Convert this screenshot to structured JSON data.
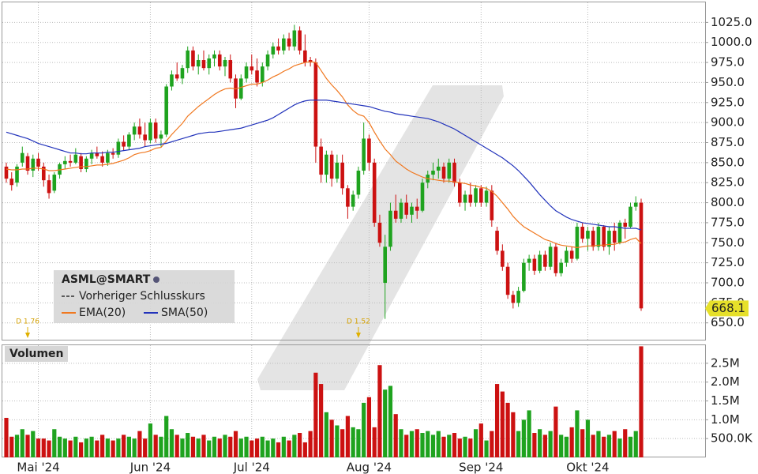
{
  "chart_data": {
    "type": "candlestick",
    "symbol": "ASML@SMART",
    "previous_close_label": "Vorheriger Schlusskurs",
    "volume_title": "Volumen",
    "up_color": "#1fa31f",
    "down_color": "#cc1111",
    "grid": true,
    "categories": [
      null,
      null,
      null,
      null,
      null,
      null,
      "Mai '24",
      null,
      null,
      null,
      null,
      null,
      null,
      null,
      null,
      null,
      null,
      null,
      null,
      null,
      null,
      null,
      null,
      null,
      null,
      null,
      null,
      "Jun '24",
      null,
      null,
      null,
      null,
      null,
      null,
      null,
      null,
      null,
      null,
      null,
      null,
      null,
      null,
      null,
      null,
      null,
      null,
      "Jul '24",
      null,
      null,
      null,
      null,
      null,
      null,
      null,
      null,
      null,
      null,
      null,
      null,
      null,
      null,
      null,
      null,
      null,
      null,
      null,
      null,
      null,
      "Aug '24",
      null,
      null,
      null,
      null,
      null,
      null,
      null,
      null,
      null,
      null,
      null,
      null,
      null,
      null,
      null,
      null,
      null,
      null,
      null,
      null,
      "Sep '24",
      null,
      null,
      null,
      null,
      null,
      null,
      null,
      null,
      null,
      null,
      null,
      null,
      null,
      null,
      null,
      null,
      null,
      null,
      null,
      "Okt '24",
      null,
      null,
      null,
      null,
      null,
      null,
      null,
      null,
      null,
      null
    ],
    "open": [
      845,
      830,
      825,
      850,
      858,
      840,
      855,
      845,
      828,
      815,
      835,
      848,
      852,
      850,
      858,
      842,
      855,
      862,
      858,
      850,
      862,
      860,
      876,
      870,
      885,
      895,
      885,
      878,
      900,
      880,
      885,
      945,
      960,
      955,
      968,
      990,
      970,
      978,
      968,
      980,
      985,
      970,
      978,
      955,
      930,
      955,
      970,
      965,
      950,
      970,
      985,
      995,
      990,
      1005,
      995,
      1015,
      990,
      978,
      975,
      870,
      835,
      860,
      830,
      850,
      818,
      795,
      810,
      840,
      880,
      850,
      775,
      700,
      745,
      790,
      780,
      800,
      785,
      795,
      790,
      825,
      835,
      840,
      845,
      830,
      850,
      825,
      800,
      810,
      800,
      818,
      800,
      815,
      765,
      740,
      720,
      685,
      675,
      690,
      725,
      730,
      715,
      735,
      720,
      745,
      712,
      725,
      740,
      730,
      770,
      755,
      765,
      745,
      770,
      745,
      765,
      750,
      775,
      770,
      795,
      800
    ],
    "high": [
      850,
      838,
      848,
      870,
      862,
      860,
      862,
      850,
      835,
      838,
      850,
      858,
      860,
      868,
      862,
      858,
      866,
      870,
      864,
      866,
      868,
      880,
      884,
      888,
      900,
      905,
      900,
      905,
      905,
      890,
      948,
      965,
      975,
      972,
      995,
      995,
      985,
      990,
      985,
      990,
      990,
      982,
      985,
      960,
      960,
      975,
      985,
      980,
      975,
      990,
      1000,
      1005,
      1010,
      1012,
      1022,
      1020,
      1010,
      982,
      980,
      880,
      865,
      865,
      860,
      860,
      822,
      815,
      845,
      900,
      885,
      855,
      785,
      760,
      800,
      810,
      805,
      810,
      800,
      805,
      830,
      840,
      850,
      855,
      850,
      855,
      855,
      830,
      815,
      825,
      822,
      822,
      820,
      822,
      770,
      748,
      725,
      690,
      695,
      730,
      735,
      735,
      740,
      740,
      750,
      750,
      730,
      745,
      745,
      775,
      775,
      770,
      770,
      775,
      772,
      770,
      775,
      778,
      780,
      800,
      808,
      805
    ],
    "low": [
      825,
      815,
      820,
      845,
      835,
      832,
      840,
      820,
      805,
      812,
      830,
      842,
      845,
      848,
      838,
      838,
      848,
      855,
      845,
      846,
      855,
      856,
      865,
      866,
      878,
      880,
      870,
      874,
      875,
      870,
      882,
      940,
      952,
      948,
      962,
      965,
      960,
      965,
      960,
      970,
      965,
      958,
      950,
      918,
      928,
      950,
      960,
      945,
      945,
      965,
      980,
      985,
      985,
      990,
      990,
      985,
      970,
      970,
      850,
      825,
      825,
      820,
      825,
      810,
      780,
      790,
      805,
      835,
      840,
      770,
      745,
      655,
      740,
      775,
      775,
      780,
      775,
      780,
      788,
      818,
      828,
      830,
      825,
      825,
      820,
      795,
      790,
      795,
      795,
      795,
      795,
      770,
      735,
      715,
      680,
      668,
      670,
      688,
      715,
      710,
      712,
      715,
      716,
      708,
      708,
      720,
      725,
      728,
      750,
      740,
      740,
      740,
      740,
      735,
      740,
      748,
      755,
      768,
      790,
      665
    ],
    "close": [
      830,
      822,
      845,
      862,
      840,
      855,
      845,
      828,
      812,
      835,
      848,
      852,
      850,
      860,
      842,
      855,
      862,
      858,
      850,
      862,
      860,
      876,
      870,
      885,
      895,
      885,
      878,
      900,
      880,
      885,
      945,
      960,
      955,
      968,
      990,
      970,
      978,
      968,
      980,
      985,
      970,
      978,
      955,
      930,
      955,
      970,
      965,
      950,
      970,
      985,
      995,
      990,
      1005,
      995,
      1015,
      990,
      975,
      975,
      870,
      835,
      860,
      830,
      850,
      818,
      795,
      810,
      840,
      880,
      850,
      775,
      750,
      745,
      790,
      780,
      800,
      785,
      795,
      790,
      825,
      835,
      840,
      845,
      830,
      850,
      825,
      800,
      810,
      800,
      818,
      800,
      815,
      778,
      740,
      720,
      685,
      675,
      690,
      725,
      730,
      715,
      735,
      720,
      745,
      712,
      725,
      740,
      730,
      770,
      755,
      765,
      745,
      770,
      745,
      765,
      750,
      775,
      770,
      795,
      800,
      668.1
    ],
    "volume": [
      1050000,
      550000,
      600000,
      750000,
      600000,
      700000,
      500000,
      500000,
      450000,
      750000,
      550000,
      500000,
      450000,
      550000,
      400000,
      500000,
      550000,
      450000,
      600000,
      500000,
      450000,
      500000,
      600000,
      550000,
      500000,
      700000,
      500000,
      900000,
      600000,
      550000,
      1100000,
      750000,
      600000,
      500000,
      650000,
      550000,
      500000,
      600000,
      450000,
      550000,
      500000,
      600000,
      550000,
      700000,
      500000,
      550000,
      450000,
      500000,
      550000,
      450000,
      500000,
      400000,
      550000,
      450000,
      600000,
      650000,
      400000,
      700000,
      2250000,
      1950000,
      1200000,
      1000000,
      850000,
      750000,
      1100000,
      800000,
      750000,
      1450000,
      1600000,
      800000,
      2450000,
      1800000,
      1900000,
      1150000,
      750000,
      600000,
      700000,
      750000,
      650000,
      700000,
      600000,
      700000,
      550000,
      600000,
      650000,
      500000,
      550000,
      500000,
      750000,
      900000,
      450000,
      700000,
      1950000,
      1750000,
      1450000,
      1200000,
      700000,
      1000000,
      1250000,
      650000,
      750000,
      600000,
      700000,
      1350000,
      600000,
      550000,
      800000,
      1250000,
      750000,
      1000000,
      600000,
      700000,
      550000,
      600000,
      700000,
      500000,
      750000,
      550000,
      700000,
      2950000
    ],
    "series": [
      {
        "name": "EMA(20)",
        "color": "#f07820",
        "values": [
          842,
          841,
          841,
          842,
          842,
          843,
          843,
          842,
          840,
          840,
          841,
          842,
          843,
          844,
          845,
          845,
          846,
          847,
          847,
          848,
          849,
          851,
          853,
          856,
          860,
          862,
          863,
          865,
          868,
          869,
          877,
          885,
          892,
          899,
          908,
          914,
          920,
          925,
          930,
          935,
          939,
          942,
          943,
          942,
          944,
          946,
          948,
          948,
          950,
          953,
          957,
          960,
          964,
          967,
          971,
          973,
          975,
          976,
          975,
          965,
          955,
          947,
          940,
          932,
          922,
          915,
          910,
          908,
          900,
          888,
          877,
          867,
          860,
          852,
          847,
          842,
          838,
          835,
          832,
          830,
          829,
          828,
          827,
          827,
          826,
          825,
          824,
          822,
          821,
          819,
          818,
          814,
          808,
          800,
          792,
          783,
          776,
          770,
          766,
          762,
          758,
          754,
          752,
          749,
          747,
          746,
          745,
          744,
          745,
          746,
          746,
          747,
          747,
          748,
          748,
          750,
          751,
          754,
          756,
          749
        ]
      },
      {
        "name": "SMA(50)",
        "color": "#2233bb",
        "values": [
          888,
          886,
          884,
          882,
          880,
          877,
          874,
          872,
          870,
          868,
          866,
          864,
          862,
          862,
          861,
          861,
          862,
          862,
          862,
          863,
          863,
          864,
          865,
          866,
          867,
          868,
          870,
          871,
          872,
          873,
          874,
          876,
          878,
          880,
          882,
          884,
          886,
          887,
          888,
          888,
          889,
          890,
          891,
          892,
          893,
          895,
          897,
          899,
          901,
          903,
          906,
          910,
          914,
          918,
          922,
          925,
          927,
          928,
          928,
          928,
          928,
          927,
          926,
          925,
          924,
          923,
          922,
          921,
          920,
          918,
          916,
          914,
          913,
          911,
          910,
          909,
          908,
          907,
          906,
          905,
          903,
          901,
          898,
          895,
          892,
          888,
          884,
          880,
          876,
          872,
          868,
          864,
          860,
          856,
          851,
          846,
          840,
          833,
          826,
          818,
          810,
          803,
          796,
          790,
          786,
          782,
          779,
          777,
          775,
          774,
          773,
          772,
          771,
          770,
          770,
          769,
          768,
          768,
          768,
          766
        ]
      }
    ],
    "ylim": [
      629,
      1051
    ],
    "yticks": [
      {
        "value": 650,
        "label": "650.0"
      },
      {
        "value": 675,
        "label": "675.0"
      },
      {
        "value": 700,
        "label": "700.0"
      },
      {
        "value": 725,
        "label": "725.0"
      },
      {
        "value": 750,
        "label": "750.0"
      },
      {
        "value": 775,
        "label": "775.0"
      },
      {
        "value": 800,
        "label": "800.0"
      },
      {
        "value": 825,
        "label": "825.0"
      },
      {
        "value": 850,
        "label": "850.0"
      },
      {
        "value": 875,
        "label": "875.0"
      },
      {
        "value": 900,
        "label": "900.0"
      },
      {
        "value": 925,
        "label": "925.0"
      },
      {
        "value": 950,
        "label": "950.0"
      },
      {
        "value": 975,
        "label": "975.0"
      },
      {
        "value": 1000,
        "label": "1000.0"
      },
      {
        "value": 1025,
        "label": "1025.0"
      }
    ],
    "volume_ylim": [
      0,
      3000000
    ],
    "volume_ticks": [
      {
        "value": 500000,
        "label": "500.0K"
      },
      {
        "value": 1000000,
        "label": "1.0M"
      },
      {
        "value": 1500000,
        "label": "1.5M"
      },
      {
        "value": 2000000,
        "label": "2.0M"
      },
      {
        "value": 2500000,
        "label": "2.5M"
      }
    ],
    "events": [
      {
        "index": 4,
        "label": "D 1.76"
      },
      {
        "index": 66,
        "label": "D 1.52"
      }
    ]
  }
}
